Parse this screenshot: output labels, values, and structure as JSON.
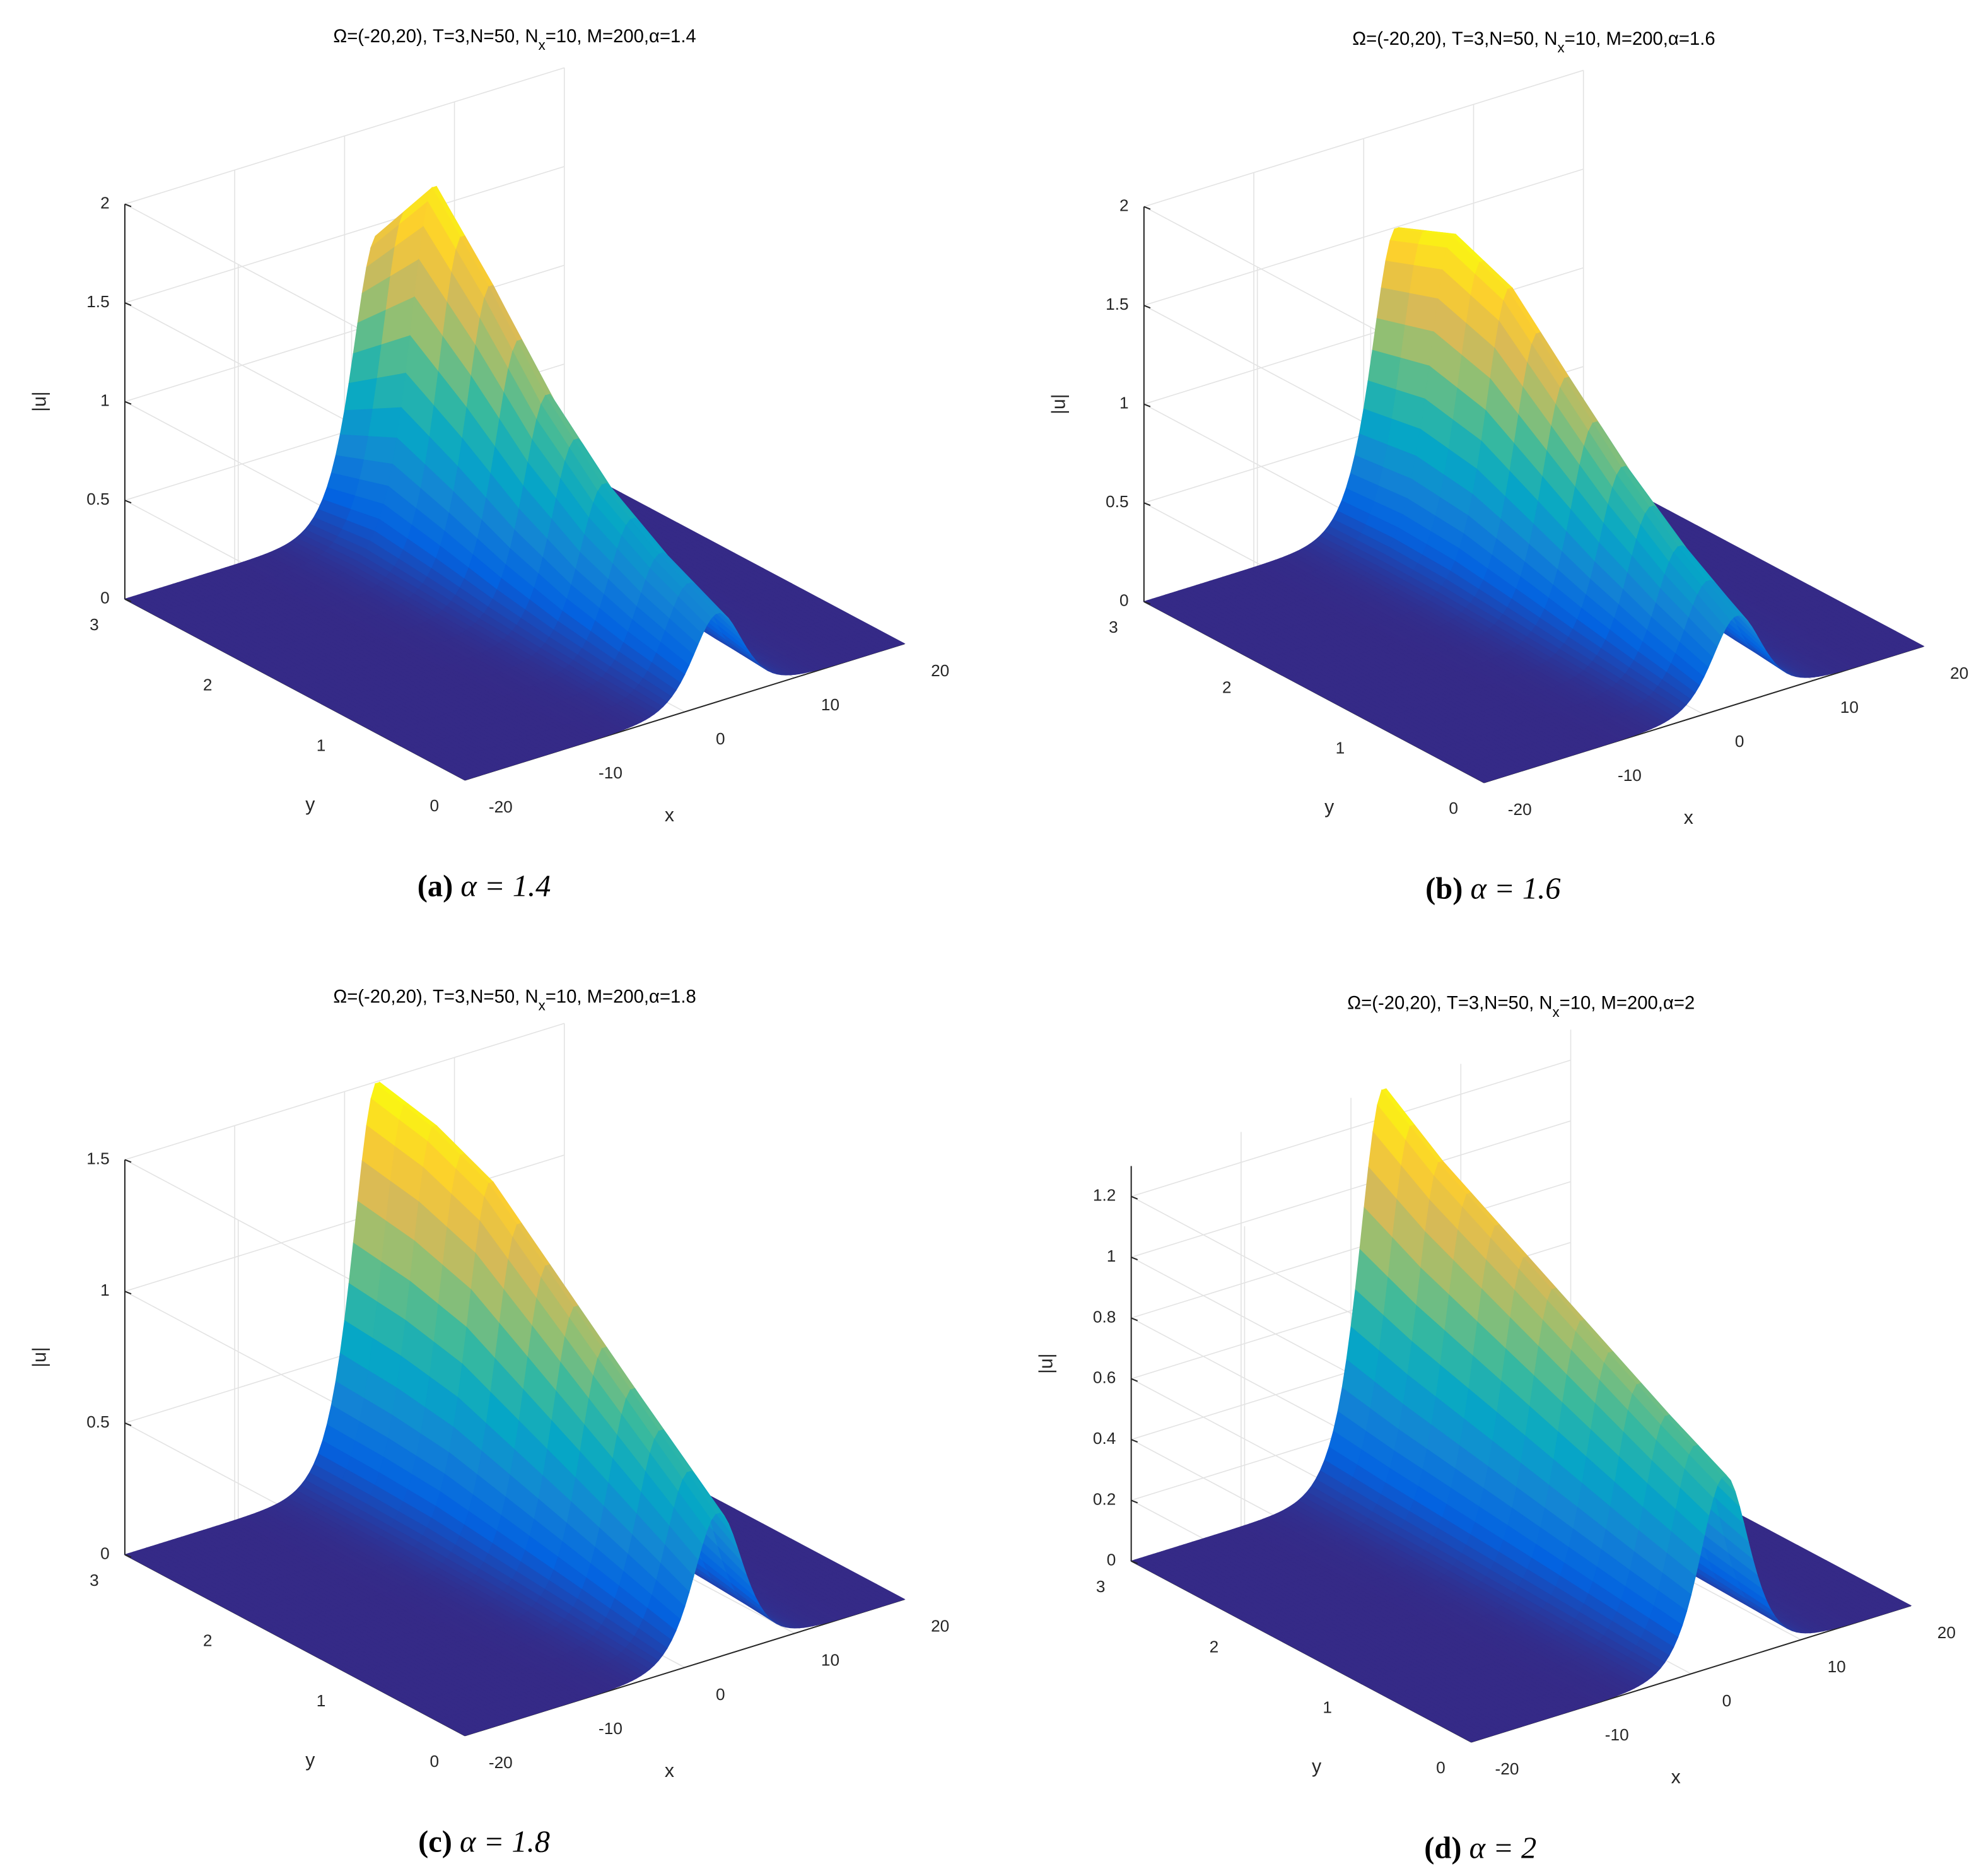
{
  "chart_data": [
    {
      "type": "surface",
      "title": [
        "Ω=(-20,20), T=3,N=50, N",
        "x",
        "=10, M=200,α=1.4"
      ],
      "caption": {
        "label": "(a)",
        "text": "α = 1.4"
      },
      "xlabel": "x",
      "ylabel": "y",
      "zlabel": "|u|",
      "xlim": [
        -20,
        20
      ],
      "xticks": [
        -20,
        -10,
        0,
        10,
        20
      ],
      "ylim": [
        0,
        3
      ],
      "yticks": [
        0,
        1,
        2,
        3
      ],
      "zlim": [
        0,
        2
      ],
      "zticks": [
        0,
        0.5,
        1,
        1.5,
        2
      ],
      "grid": true,
      "ridge_x": 3,
      "y": [
        0,
        0.5,
        1,
        1.5,
        2,
        2.5,
        3
      ],
      "values": [
        0.45,
        0.6,
        0.8,
        1.1,
        1.5,
        1.85,
        1.45
      ]
    },
    {
      "type": "surface",
      "title": [
        "Ω=(-20,20), T=3,N=50, N",
        "x",
        "=10, M=200,α=1.6"
      ],
      "caption": {
        "label": "(b)",
        "text": "α = 1.6"
      },
      "xlabel": "x",
      "ylabel": "y",
      "zlabel": "|u|",
      "xlim": [
        -20,
        20
      ],
      "xticks": [
        -20,
        -10,
        0,
        10,
        20
      ],
      "ylim": [
        0,
        3
      ],
      "yticks": [
        0,
        1,
        2,
        3
      ],
      "zlim": [
        0,
        2
      ],
      "zticks": [
        0,
        0.5,
        1,
        1.5,
        2
      ],
      "grid": true,
      "ridge_x": 3,
      "y": [
        0,
        0.5,
        1,
        1.5,
        2,
        2.5,
        3
      ],
      "values": [
        0.45,
        0.65,
        0.9,
        1.2,
        1.5,
        1.62,
        1.5
      ]
    },
    {
      "type": "surface",
      "title": [
        "Ω=(-20,20), T=3,N=50, N",
        "x",
        "=10, M=200,α=1.8"
      ],
      "caption": {
        "label": "(c)",
        "text": "α = 1.8"
      },
      "xlabel": "x",
      "ylabel": "y",
      "zlabel": "|u|",
      "xlim": [
        -20,
        20
      ],
      "xticks": [
        -20,
        -10,
        0,
        10,
        20
      ],
      "ylim": [
        0,
        3
      ],
      "yticks": [
        0,
        1,
        2,
        3
      ],
      "zlim": [
        0,
        1.5
      ],
      "zticks": [
        0,
        0.5,
        1,
        1.5
      ],
      "grid": true,
      "ridge_x": 3,
      "y": [
        0,
        0.5,
        1,
        1.5,
        2,
        2.5,
        3
      ],
      "values": [
        0.55,
        0.75,
        0.95,
        1.15,
        1.35,
        1.45,
        1.5
      ]
    },
    {
      "type": "surface",
      "title": [
        "Ω=(-20,20), T=3,N=50, N",
        "x",
        "=10, M=200,α=2"
      ],
      "caption": {
        "label": "(d)",
        "text": "α = 2"
      },
      "xlabel": "x",
      "ylabel": "y",
      "zlabel": "|u|",
      "xlim": [
        -20,
        20
      ],
      "xticks": [
        -20,
        -10,
        0,
        10,
        20
      ],
      "ylim": [
        0,
        3
      ],
      "yticks": [
        0,
        1,
        2,
        3
      ],
      "zlim": [
        0,
        1.3
      ],
      "zticks": [
        0,
        0.2,
        0.4,
        0.6,
        0.8,
        1,
        1.2
      ],
      "grid": true,
      "ridge_x": 3,
      "y": [
        0,
        0.5,
        1,
        1.5,
        2,
        2.5,
        3
      ],
      "values": [
        0.62,
        0.72,
        0.83,
        0.94,
        1.05,
        1.16,
        1.3
      ]
    }
  ]
}
